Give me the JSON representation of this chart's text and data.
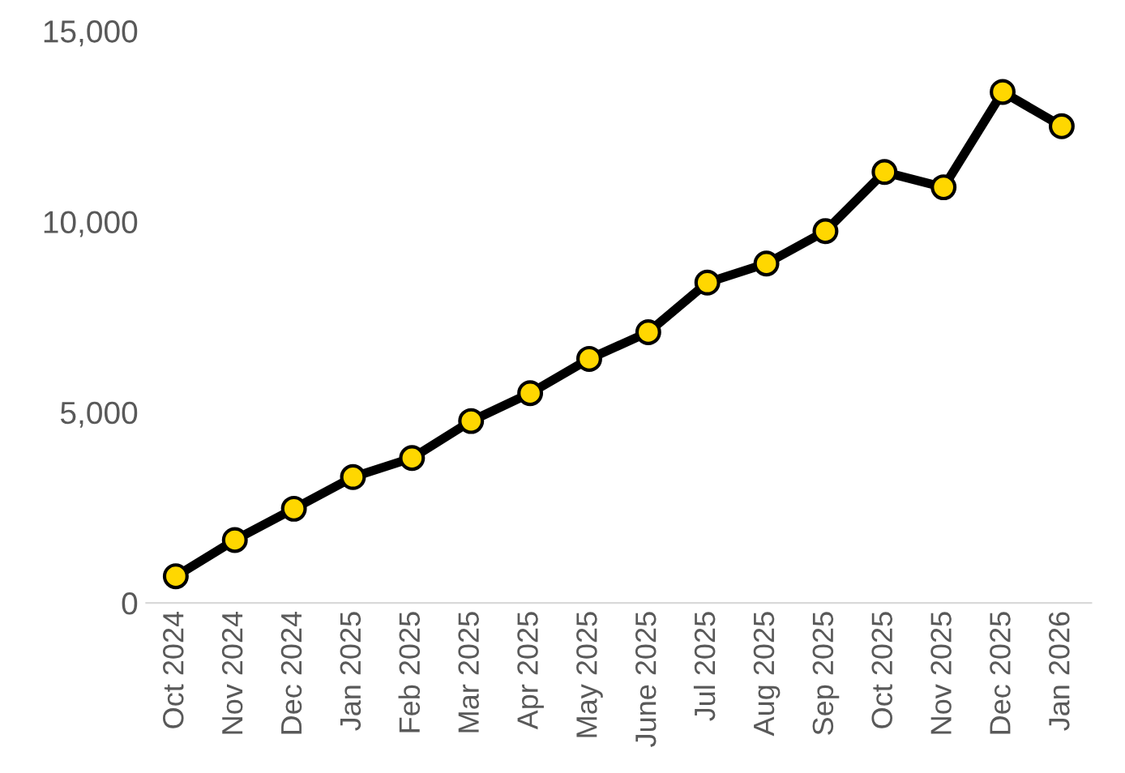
{
  "chart_data": {
    "type": "line",
    "categories": [
      "Oct 2024",
      "Nov 2024",
      "Dec 2024",
      "Jan 2025",
      "Feb 2025",
      "Mar 2025",
      "Apr 2025",
      "May 2025",
      "June 2025",
      "Jul 2025",
      "Aug 2025",
      "Sep 2025",
      "Oct 2025",
      "Nov 2025",
      "Dec 2025",
      "Jan 2026"
    ],
    "series": [
      {
        "color": "#000000",
        "values": [
          700,
          1650,
          2470,
          3300,
          3800,
          4770,
          5500,
          6400,
          7100,
          8400,
          8900,
          9750,
          11300,
          10900,
          13400,
          12500
        ]
      }
    ],
    "ylim": [
      0,
      15000
    ],
    "yticks": [
      0,
      {
        "value": 5000,
        "label": "5,000"
      },
      {
        "value": 10000,
        "label": "10,000"
      },
      {
        "value": 15000,
        "label": "15,000"
      }
    ],
    "marker": "circle",
    "line_style": "solid"
  }
}
